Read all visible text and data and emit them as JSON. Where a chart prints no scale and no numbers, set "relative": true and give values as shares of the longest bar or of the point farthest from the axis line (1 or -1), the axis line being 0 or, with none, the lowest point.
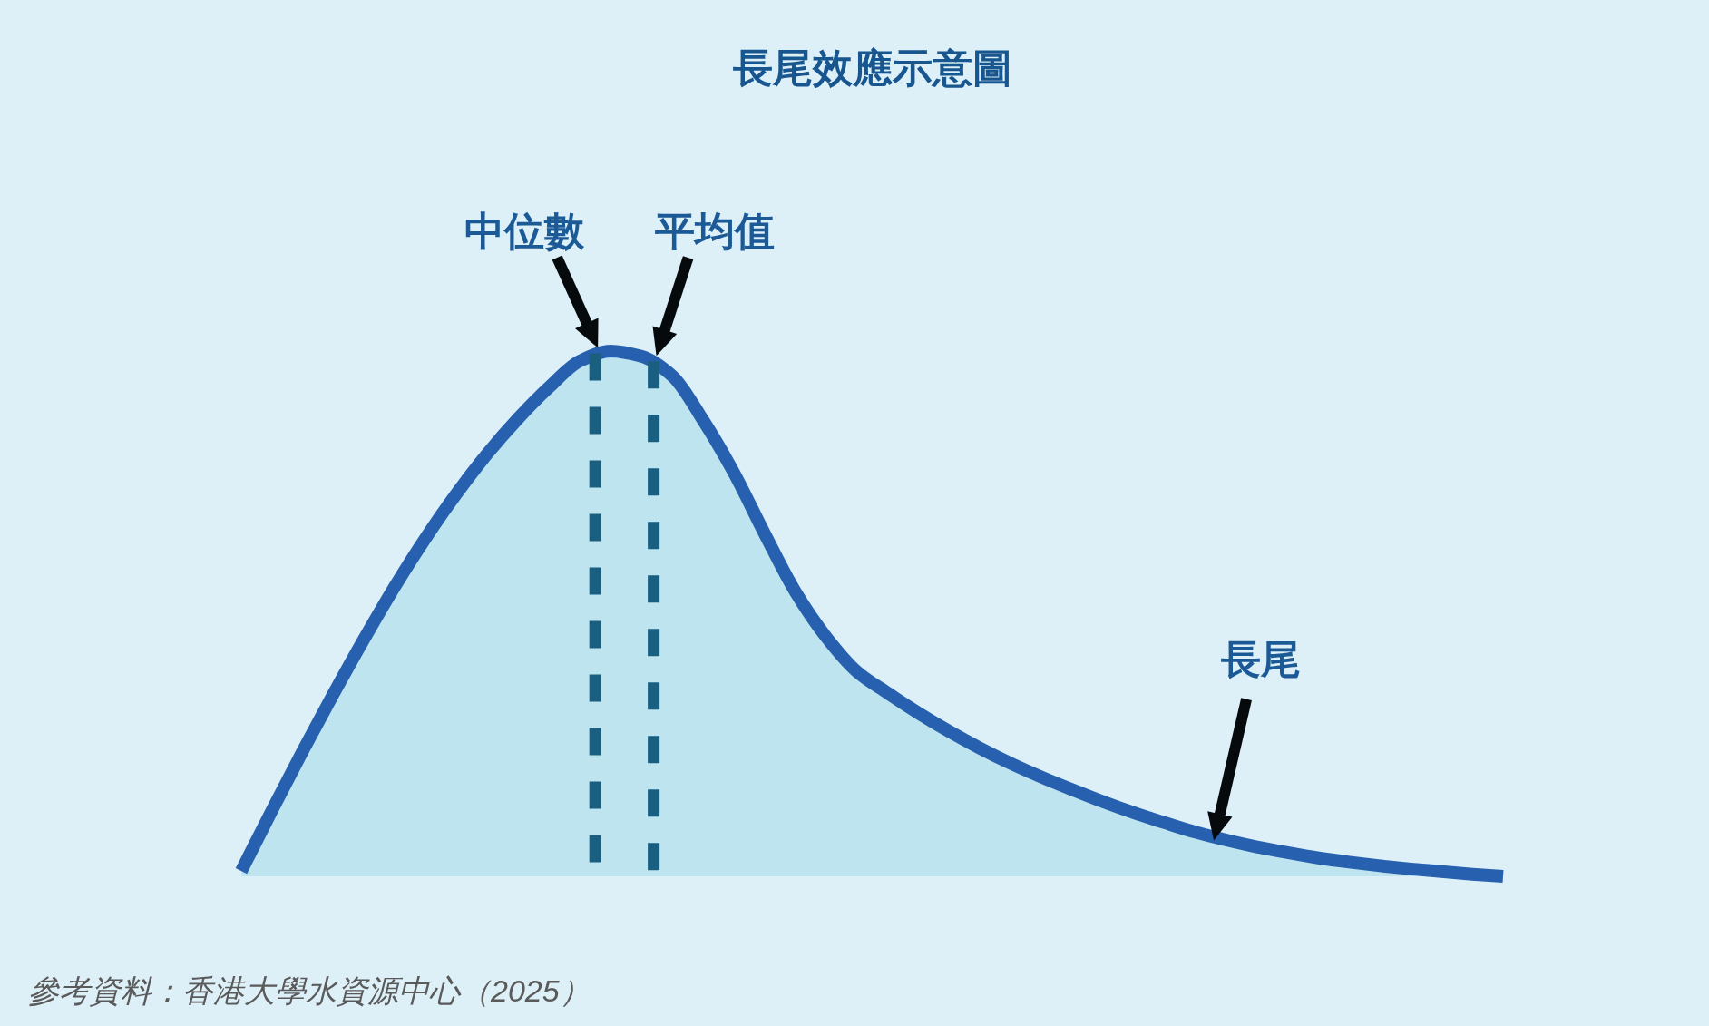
{
  "chart_data": {
    "type": "area",
    "title": "長尾效應示意圖",
    "categories": [
      null,
      null,
      null,
      null,
      null,
      null,
      null,
      null,
      null,
      null,
      null,
      null,
      null,
      null,
      null,
      null,
      null,
      null,
      null,
      null,
      null,
      null,
      null,
      null,
      null,
      null,
      null,
      null,
      null,
      null,
      null,
      null,
      null,
      null,
      null,
      null,
      null,
      null,
      null,
      null,
      null,
      null
    ],
    "series": [
      {
        "color": "#2660ae",
        "values": [
          0.01,
          0.126,
          0.239,
          0.348,
          0.453,
          0.553,
          0.645,
          0.729,
          0.805,
          0.872,
          0.931,
          0.981,
          1,
          0.99,
          0.953,
          0.869,
          0.769,
          0.653,
          0.542,
          0.456,
          0.39,
          0.349,
          0.311,
          0.276,
          0.244,
          0.215,
          0.189,
          0.165,
          0.142,
          0.121,
          0.102,
          0.084,
          0.069,
          0.056,
          0.045,
          0.035,
          0.027,
          0.02,
          0.014,
          0.009,
          0.004,
          0
        ]
      }
    ],
    "relative": true,
    "annotations": [
      "中位數",
      "平均值",
      "長尾",
      "參考資料：香港大學水資源中心（2025）"
    ]
  }
}
